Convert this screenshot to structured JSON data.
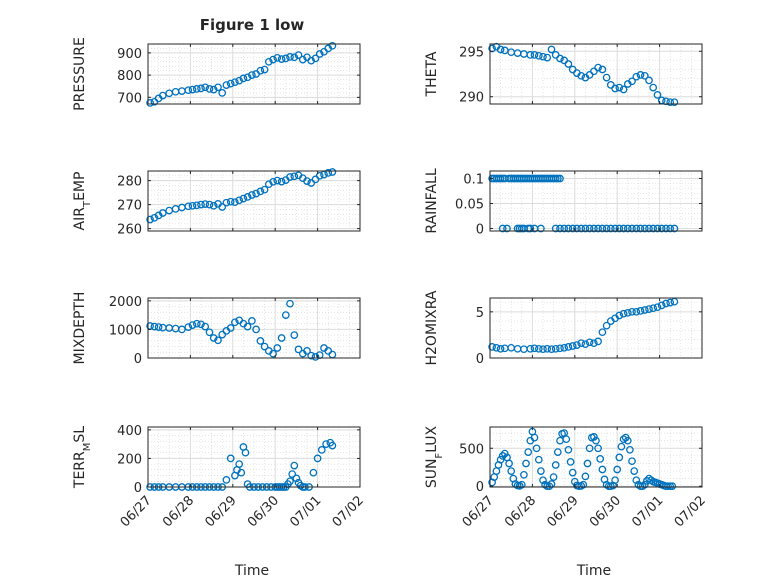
{
  "figure": {
    "title": "Figure 1 low",
    "xlabel": "Time",
    "date_ticks": [
      "06/27",
      "06/28",
      "06/29",
      "06/30",
      "07/01",
      "07/02"
    ],
    "marker_color": "#0072BD"
  },
  "chart_data": [
    {
      "type": "scatter",
      "title": "Figure 1 low",
      "ylabel": "PRESSURE",
      "xlim": [
        "06/27",
        "07/02"
      ],
      "ylim": [
        670,
        940
      ],
      "yticks": [
        700,
        800,
        900
      ],
      "grid": true,
      "series": [
        {
          "x": [
            0.05,
            0.15,
            0.25,
            0.35,
            0.5,
            0.65,
            0.8,
            0.95,
            1.05,
            1.15,
            1.25,
            1.35,
            1.45,
            1.55,
            1.65,
            1.75,
            1.85,
            1.95,
            2.05,
            2.15,
            2.25,
            2.35,
            2.45,
            2.55,
            2.65,
            2.75,
            2.85,
            2.95,
            3.05,
            3.15,
            3.25,
            3.35,
            3.45,
            3.55,
            3.65,
            3.75,
            3.85,
            3.95,
            4.05,
            4.15,
            4.25,
            4.35
          ],
          "y": [
            675,
            680,
            695,
            708,
            718,
            725,
            728,
            732,
            735,
            738,
            740,
            745,
            738,
            735,
            745,
            720,
            755,
            762,
            768,
            775,
            785,
            790,
            800,
            805,
            820,
            825,
            860,
            870,
            878,
            872,
            875,
            882,
            880,
            890,
            870,
            880,
            865,
            875,
            895,
            905,
            920,
            932
          ]
        }
      ]
    },
    {
      "type": "scatter",
      "ylabel": "THETA",
      "xlim": [
        "06/27",
        "07/02"
      ],
      "ylim": [
        289.2,
        295.8
      ],
      "yticks": [
        290,
        295
      ],
      "grid": true,
      "series": [
        {
          "x": [
            0.05,
            0.15,
            0.25,
            0.35,
            0.5,
            0.65,
            0.8,
            0.95,
            1.05,
            1.15,
            1.25,
            1.35,
            1.45,
            1.55,
            1.65,
            1.75,
            1.85,
            1.95,
            2.05,
            2.15,
            2.25,
            2.35,
            2.45,
            2.55,
            2.65,
            2.75,
            2.85,
            2.95,
            3.05,
            3.15,
            3.25,
            3.35,
            3.45,
            3.55,
            3.65,
            3.75,
            3.85,
            3.95,
            4.05,
            4.15,
            4.25,
            4.35
          ],
          "y": [
            295.3,
            295.5,
            295.2,
            295.1,
            294.9,
            294.8,
            294.7,
            294.6,
            294.6,
            294.5,
            294.4,
            294.3,
            295.2,
            294.6,
            294.2,
            294.0,
            293.6,
            293.0,
            292.6,
            292.3,
            292.1,
            292.4,
            292.8,
            293.2,
            293.0,
            292.1,
            291.3,
            290.9,
            291.0,
            290.8,
            291.4,
            291.7,
            292.2,
            292.4,
            292.3,
            291.8,
            291.0,
            290.2,
            289.6,
            289.5,
            289.4,
            289.4
          ]
        }
      ]
    },
    {
      "type": "scatter",
      "ylabel": "AIR_TEMP",
      "xlim": [
        "06/27",
        "07/02"
      ],
      "ylim": [
        259,
        284
      ],
      "yticks": [
        260,
        270,
        280
      ],
      "grid": true,
      "series": [
        {
          "x": [
            0.05,
            0.15,
            0.25,
            0.35,
            0.5,
            0.65,
            0.8,
            0.95,
            1.05,
            1.15,
            1.25,
            1.35,
            1.45,
            1.55,
            1.65,
            1.75,
            1.85,
            1.95,
            2.05,
            2.15,
            2.25,
            2.35,
            2.45,
            2.55,
            2.65,
            2.75,
            2.85,
            2.95,
            3.05,
            3.15,
            3.25,
            3.35,
            3.45,
            3.55,
            3.65,
            3.75,
            3.85,
            3.95,
            4.05,
            4.15,
            4.25,
            4.35
          ],
          "y": [
            263.8,
            264.5,
            265.5,
            266.5,
            267.5,
            268.2,
            268.8,
            269.3,
            269.5,
            269.7,
            270.0,
            270.2,
            270.0,
            269.5,
            270.3,
            269.0,
            270.8,
            271.2,
            271.0,
            271.8,
            272.5,
            273.2,
            274.0,
            274.6,
            275.5,
            276.2,
            278.5,
            279.5,
            280.0,
            279.6,
            280.2,
            281.5,
            281.8,
            282.2,
            281.0,
            279.8,
            279.0,
            280.5,
            282.0,
            282.5,
            283.2,
            283.6
          ]
        }
      ]
    },
    {
      "type": "scatter",
      "ylabel": "RAINFALL",
      "xlim": [
        "06/27",
        "07/02"
      ],
      "ylim": [
        -0.005,
        0.115
      ],
      "yticks": [
        0,
        0.05,
        0.1
      ],
      "grid": true,
      "series": [
        {
          "x": [
            0.05,
            0.1,
            0.15,
            0.2,
            0.25,
            0.3,
            0.35,
            0.45,
            0.5,
            0.55,
            0.6,
            0.65,
            0.7,
            0.75,
            0.8,
            0.85,
            0.9,
            0.95,
            1.0,
            1.05,
            1.1,
            1.15,
            1.2,
            1.25,
            1.3,
            1.35,
            1.4,
            1.45,
            1.5,
            1.55,
            1.6,
            1.65,
            1.75,
            1.85,
            1.95,
            2.05,
            2.15,
            2.25,
            2.35,
            2.45,
            2.55,
            2.65,
            2.75,
            2.85,
            2.95,
            3.05,
            3.15,
            3.25,
            3.35,
            3.45,
            3.55,
            3.65,
            3.75,
            3.85,
            3.95,
            4.05,
            4.15,
            4.25,
            4.35,
            0.3,
            0.4,
            0.65,
            0.7,
            0.75,
            0.8,
            0.9,
            0.95,
            1.05,
            1.2,
            1.55,
            1.65
          ],
          "y": [
            0.1,
            0.1,
            0.1,
            0.1,
            0.1,
            0.1,
            0.1,
            0.1,
            0.1,
            0.1,
            0.1,
            0.1,
            0.1,
            0.1,
            0.1,
            0.1,
            0.1,
            0.1,
            0.1,
            0.1,
            0.1,
            0.1,
            0.1,
            0.1,
            0.1,
            0.1,
            0.1,
            0.1,
            0.1,
            0.1,
            0.1,
            0.1,
            0,
            0,
            0,
            0,
            0,
            0,
            0,
            0,
            0,
            0,
            0,
            0,
            0,
            0,
            0,
            0,
            0,
            0,
            0,
            0,
            0,
            0,
            0,
            0,
            0,
            0,
            0,
            0,
            0,
            0,
            0,
            0,
            0,
            0,
            0,
            0,
            0,
            0,
            0
          ]
        }
      ]
    },
    {
      "type": "scatter",
      "ylabel": "MIXDEPTH",
      "xlim": [
        "06/27",
        "07/02"
      ],
      "ylim": [
        0,
        2100
      ],
      "yticks": [
        0,
        1000,
        2000
      ],
      "grid": true,
      "series": [
        {
          "x": [
            0.05,
            0.15,
            0.25,
            0.35,
            0.5,
            0.65,
            0.8,
            0.95,
            1.05,
            1.15,
            1.25,
            1.35,
            1.45,
            1.55,
            1.65,
            1.75,
            1.85,
            1.95,
            2.05,
            2.15,
            2.25,
            2.35,
            2.45,
            2.55,
            2.65,
            2.75,
            2.85,
            2.95,
            3.05,
            3.15,
            3.25,
            3.35,
            3.45,
            3.55,
            3.65,
            3.75,
            3.85,
            3.95,
            4.05,
            4.15,
            4.25,
            4.35
          ],
          "y": [
            1120,
            1100,
            1080,
            1060,
            1050,
            1030,
            1000,
            1080,
            1150,
            1200,
            1180,
            1100,
            900,
            700,
            620,
            820,
            950,
            1050,
            1250,
            1320,
            1200,
            1100,
            1300,
            1000,
            600,
            400,
            250,
            150,
            350,
            700,
            1500,
            1900,
            800,
            300,
            150,
            250,
            80,
            40,
            100,
            350,
            250,
            120
          ]
        }
      ]
    },
    {
      "type": "scatter",
      "ylabel": "H2OMIXRA",
      "xlim": [
        "06/27",
        "07/02"
      ],
      "ylim": [
        0,
        6.5
      ],
      "yticks": [
        0,
        5
      ],
      "grid": true,
      "series": [
        {
          "x": [
            0.05,
            0.15,
            0.25,
            0.35,
            0.5,
            0.65,
            0.8,
            0.95,
            1.05,
            1.15,
            1.25,
            1.35,
            1.45,
            1.55,
            1.65,
            1.75,
            1.85,
            1.95,
            2.05,
            2.15,
            2.25,
            2.35,
            2.45,
            2.55,
            2.65,
            2.75,
            2.85,
            2.95,
            3.05,
            3.15,
            3.25,
            3.35,
            3.45,
            3.55,
            3.65,
            3.75,
            3.85,
            3.95,
            4.05,
            4.15,
            4.25,
            4.35
          ],
          "y": [
            1.2,
            1.1,
            1.0,
            1.05,
            1.1,
            1.0,
            0.95,
            1.0,
            1.05,
            1.0,
            0.95,
            1.0,
            0.95,
            1.0,
            1.05,
            1.1,
            1.2,
            1.3,
            1.4,
            1.6,
            1.5,
            1.7,
            1.6,
            1.8,
            2.8,
            3.5,
            4.0,
            4.3,
            4.6,
            4.8,
            4.9,
            5.0,
            5.0,
            5.1,
            5.2,
            5.3,
            5.4,
            5.5,
            5.7,
            5.9,
            6.0,
            6.1
          ]
        }
      ]
    },
    {
      "type": "scatter",
      "ylabel": "TERR_MSL",
      "xlim": [
        "06/27",
        "07/02"
      ],
      "ylim": [
        0,
        420
      ],
      "yticks": [
        0,
        200,
        400
      ],
      "grid": true,
      "series": [
        {
          "x": [
            0.05,
            0.15,
            0.25,
            0.35,
            0.5,
            0.65,
            0.8,
            0.95,
            1.05,
            1.15,
            1.25,
            1.35,
            1.45,
            1.55,
            1.65,
            1.75,
            1.85,
            1.95,
            2.05,
            2.1,
            2.15,
            2.2,
            2.25,
            2.3,
            2.35,
            2.4,
            2.5,
            2.6,
            2.7,
            2.8,
            2.9,
            3.0,
            3.05,
            3.1,
            3.15,
            3.2,
            3.25,
            3.3,
            3.35,
            3.4,
            3.45,
            3.5,
            3.55,
            3.6,
            3.65,
            3.7,
            3.8,
            3.9,
            4.0,
            4.1,
            4.2,
            4.3,
            4.35
          ],
          "y": [
            0,
            0,
            0,
            0,
            0,
            0,
            0,
            0,
            0,
            0,
            0,
            0,
            0,
            0,
            0,
            0,
            50,
            200,
            80,
            120,
            160,
            100,
            280,
            240,
            20,
            0,
            0,
            0,
            0,
            0,
            0,
            0,
            0,
            0,
            0,
            0,
            0,
            20,
            40,
            90,
            150,
            60,
            30,
            10,
            0,
            0,
            0,
            100,
            200,
            260,
            300,
            310,
            290
          ]
        }
      ]
    },
    {
      "type": "scatter",
      "ylabel": "SUN_FLUX",
      "xlim": [
        "06/27",
        "07/02"
      ],
      "ylim": [
        -10,
        780
      ],
      "yticks": [
        0,
        500
      ],
      "grid": true,
      "series": [
        {
          "x": [
            0.05,
            0.1,
            0.15,
            0.2,
            0.25,
            0.3,
            0.35,
            0.4,
            0.45,
            0.5,
            0.55,
            0.6,
            0.65,
            0.7,
            0.75,
            0.8,
            0.85,
            0.9,
            0.95,
            1.0,
            1.05,
            1.1,
            1.15,
            1.2,
            1.25,
            1.3,
            1.35,
            1.4,
            1.45,
            1.5,
            1.55,
            1.6,
            1.65,
            1.7,
            1.75,
            1.8,
            1.85,
            1.9,
            1.95,
            2.0,
            2.05,
            2.1,
            2.15,
            2.2,
            2.25,
            2.3,
            2.35,
            2.4,
            2.45,
            2.5,
            2.55,
            2.6,
            2.65,
            2.7,
            2.75,
            2.8,
            2.85,
            2.9,
            2.95,
            3.0,
            3.05,
            3.1,
            3.15,
            3.2,
            3.25,
            3.3,
            3.35,
            3.4,
            3.45,
            3.5,
            3.55,
            3.6,
            3.65,
            3.7,
            3.75,
            3.8,
            3.85,
            3.9,
            3.95,
            4.0,
            4.05,
            4.1,
            4.15,
            4.2,
            4.25,
            4.3
          ],
          "y": [
            50,
            120,
            200,
            280,
            350,
            400,
            430,
            380,
            300,
            200,
            100,
            30,
            10,
            5,
            20,
            150,
            300,
            450,
            600,
            720,
            640,
            500,
            350,
            200,
            80,
            20,
            0,
            0,
            30,
            120,
            280,
            450,
            600,
            690,
            700,
            620,
            480,
            320,
            180,
            60,
            10,
            0,
            5,
            20,
            130,
            300,
            500,
            640,
            650,
            600,
            500,
            360,
            220,
            90,
            20,
            0,
            0,
            10,
            80,
            220,
            380,
            520,
            620,
            640,
            600,
            480,
            330,
            200,
            80,
            20,
            0,
            0,
            20,
            70,
            100,
            80,
            60,
            50,
            40,
            30,
            20,
            10,
            0,
            0,
            0,
            0
          ]
        }
      ]
    }
  ]
}
